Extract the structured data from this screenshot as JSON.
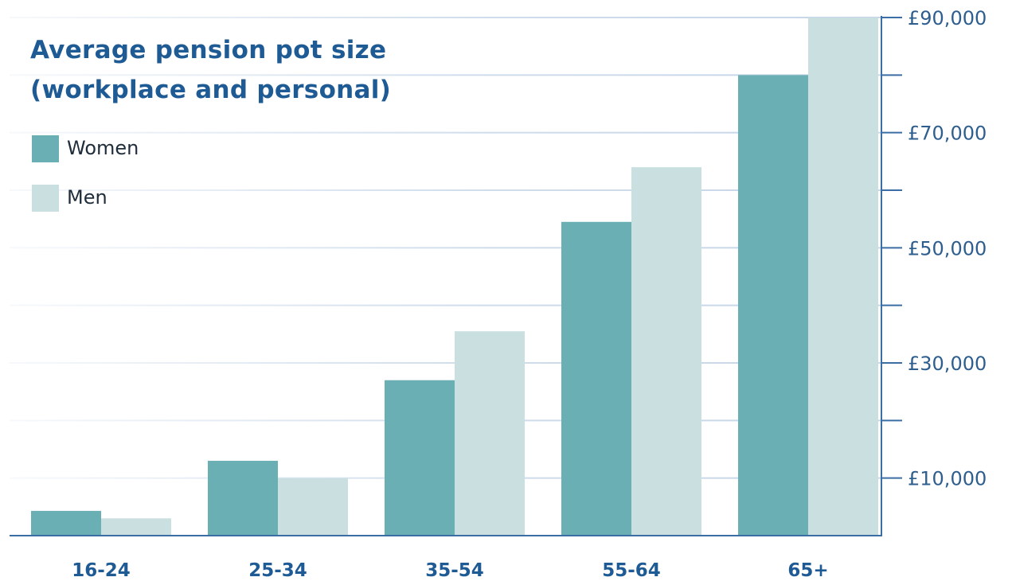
{
  "chart_data": {
    "type": "bar",
    "title": "Average pension pot size",
    "subtitle": "(workplace and personal)",
    "categories": [
      "16-24",
      "25-34",
      "35-54",
      "55-64",
      "65+"
    ],
    "series": [
      {
        "name": "Women",
        "color": "#6aafb3",
        "values": [
          4300,
          13000,
          27000,
          54500,
          80000
        ]
      },
      {
        "name": "Men",
        "color": "#c9dfe0",
        "values": [
          3000,
          10000,
          35500,
          64000,
          90000
        ]
      }
    ],
    "ylim": [
      0,
      90000
    ],
    "y_ticks": [
      0,
      10000,
      20000,
      30000,
      40000,
      50000,
      60000,
      70000,
      80000,
      90000
    ],
    "y_tick_labels": [
      {
        "value": 10000,
        "label": "£10,000"
      },
      {
        "value": 30000,
        "label": "£30,000"
      },
      {
        "value": 50000,
        "label": "£50,000"
      },
      {
        "value": 70000,
        "label": "£70,000"
      },
      {
        "value": 90000,
        "label": "£90,000"
      }
    ],
    "xlabel": "",
    "ylabel": "",
    "grid": true,
    "y_axis_position": "right",
    "legend_position": "top-left",
    "axis_color": "#3a6ea5",
    "grid_color": "#c6d6e8",
    "tick_label_color": "#2e5e8e",
    "category_label_color": "#1e5a93"
  }
}
